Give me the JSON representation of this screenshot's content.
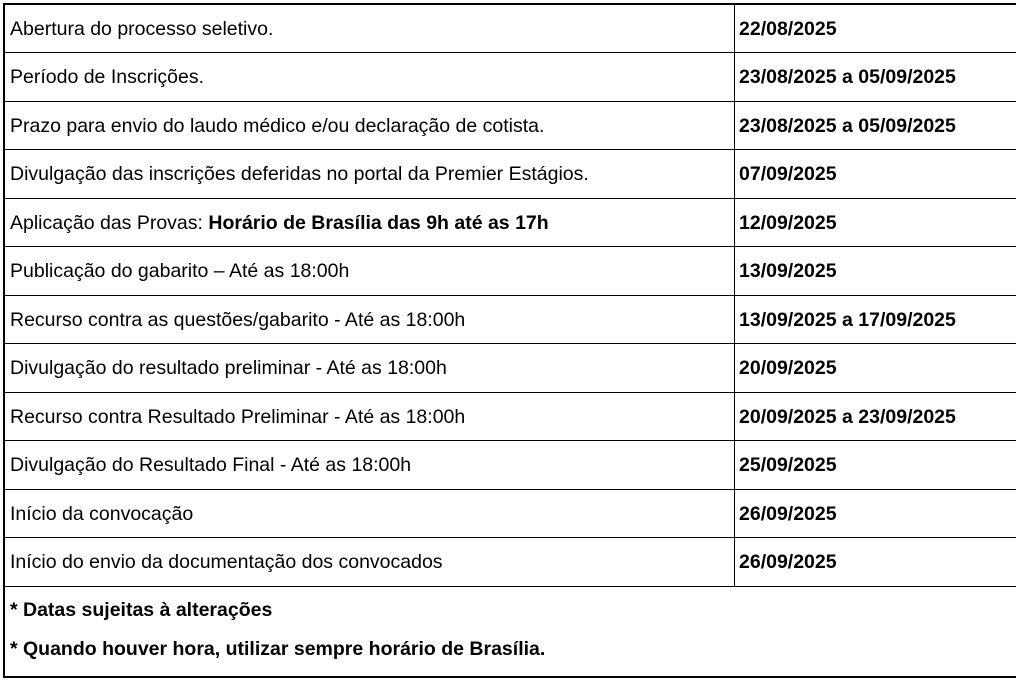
{
  "table": {
    "rows": [
      {
        "label": "Abertura do processo seletivo.",
        "date": "22/08/2025"
      },
      {
        "label": "Período de Inscrições.",
        "date": "23/08/2025 a 05/09/2025"
      },
      {
        "label": "Prazo para envio do laudo médico e/ou declaração de cotista.",
        "date": "23/08/2025 a 05/09/2025"
      },
      {
        "label": "Divulgação das inscrições deferidas no portal da Premier Estágios.",
        "date": "07/09/2025"
      },
      {
        "label": "Aplicação das Provas: ",
        "label_bold": "Horário de Brasília das 9h até as 17h",
        "date": "12/09/2025"
      },
      {
        "label": "Publicação do gabarito – Até as 18:00h",
        "date": "13/09/2025"
      },
      {
        "label": "Recurso contra as questões/gabarito - Até as 18:00h",
        "date": "13/09/2025 a 17/09/2025"
      },
      {
        "label": "Divulgação do resultado preliminar - Até as 18:00h",
        "date": "20/09/2025"
      },
      {
        "label": "Recurso contra Resultado Preliminar - Até as 18:00h",
        "date": "20/09/2025 a 23/09/2025"
      },
      {
        "label": "Divulgação do Resultado Final - Até as 18:00h",
        "date": "25/09/2025"
      },
      {
        "label": "Início da convocação",
        "date": "26/09/2025"
      },
      {
        "label": "Início do envio da documentação dos convocados",
        "date": "26/09/2025"
      }
    ],
    "footnotes": [
      "* Datas sujeitas à alterações",
      "* Quando houver hora, utilizar sempre horário de Brasília."
    ]
  },
  "colors": {
    "border": "#000000",
    "text": "#000000",
    "background": "#ffffff"
  }
}
